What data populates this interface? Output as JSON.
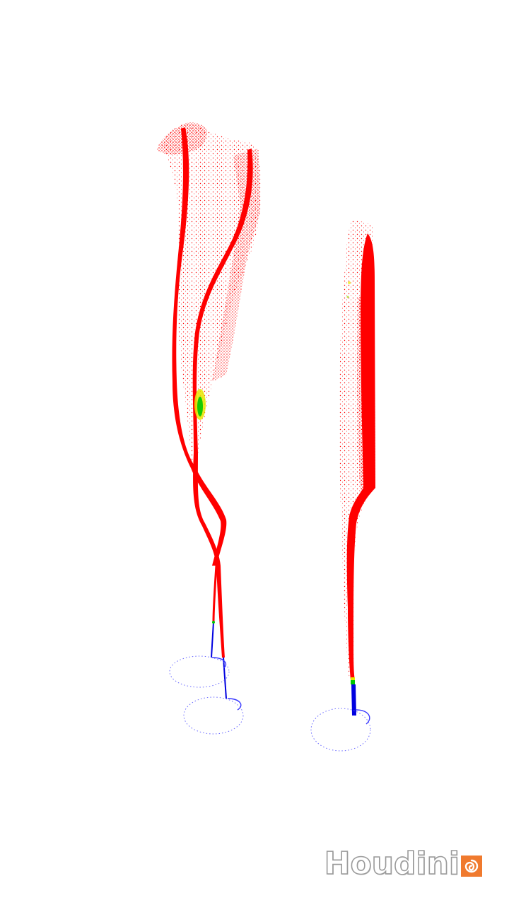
{
  "viewport": {
    "background": "#ffffff",
    "particle_colors": {
      "top": "#ff0000",
      "mid_yellow": "#e8e800",
      "mid_green": "#00c800",
      "base": "#0000e0",
      "ring": "#6a6aff"
    }
  },
  "watermark": {
    "text": "Houdini",
    "badge_color": "#f07a2e",
    "icon": "houdini-swirl-icon"
  }
}
